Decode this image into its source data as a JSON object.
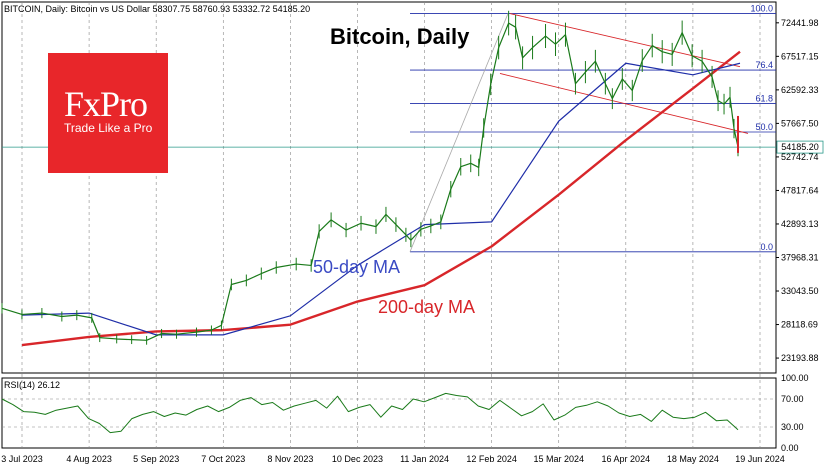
{
  "header": {
    "symbol": "BITCOIN, Daily:  Bitcoin vs US Dollar  58307.75 58760.93 53332.72 54185.20"
  },
  "title": "Bitcoin, Daily",
  "logo": {
    "brand": "FxPro",
    "tagline": "Trade Like a Pro"
  },
  "labels": {
    "ma50": "50-day MA",
    "ma200": "200-day MA"
  },
  "colors": {
    "price": "#1a7a1a",
    "ma50": "#1f2ea8",
    "ma200": "#d8262a",
    "fib": "#1f2ea8",
    "channel": "#d8262a",
    "rsi": "#1a7a1a",
    "brand": "#e8262a",
    "current": "#2a9a8a"
  },
  "chart_data": {
    "type": "line",
    "title": "Bitcoin, Daily",
    "x": [
      "3 Jul 2023",
      "4 Aug 2023",
      "5 Sep 2023",
      "7 Oct 2023",
      "8 Nov 2023",
      "10 Dec 2023",
      "11 Jan 2024",
      "12 Feb 2024",
      "15 Mar 2024",
      "16 Apr 2024",
      "18 May 2024",
      "19 Jun 2024"
    ],
    "xticks": [
      "3 Jul 2023",
      "4 Aug 2023",
      "5 Sep 2023",
      "7 Oct 2023",
      "8 Nov 2023",
      "10 Dec 2023",
      "11 Jan 2024",
      "12 Feb 2024",
      "15 Mar 2024",
      "16 Apr 2024",
      "18 May 2024",
      "19 Jun 2024"
    ],
    "yticks": [
      "72441.98",
      "67517.15",
      "62592.33",
      "57667.50",
      "52742.74",
      "47817.64",
      "42893.13",
      "37968.31",
      "33043.50",
      "28118.69",
      "23193.88"
    ],
    "yrange": [
      21000,
      75500
    ],
    "current_price": 54185.2,
    "current_price_label": "54185.20",
    "series": [
      {
        "name": "50-day MA",
        "values": [
          29500,
          29800,
          26600,
          26600,
          29400,
          36800,
          42800,
          43200,
          58000,
          66500,
          64800,
          66500
        ]
      },
      {
        "name": "200-day MA",
        "values": [
          25100,
          26300,
          27100,
          27300,
          28100,
          31500,
          33900,
          39600,
          47200,
          55200,
          62800,
          68200
        ]
      }
    ],
    "price": [
      [
        0,
        30500
      ],
      [
        20,
        29600
      ],
      [
        40,
        29800
      ],
      [
        60,
        29300
      ],
      [
        75,
        29500
      ],
      [
        90,
        29100
      ],
      [
        98,
        26200
      ],
      [
        115,
        26000
      ],
      [
        130,
        25900
      ],
      [
        145,
        25800
      ],
      [
        160,
        26800
      ],
      [
        175,
        26700
      ],
      [
        195,
        27000
      ],
      [
        210,
        27300
      ],
      [
        220,
        28000
      ],
      [
        230,
        34000
      ],
      [
        245,
        34600
      ],
      [
        260,
        35600
      ],
      [
        275,
        36500
      ],
      [
        295,
        37000
      ],
      [
        310,
        36800
      ],
      [
        318,
        41800
      ],
      [
        330,
        43500
      ],
      [
        345,
        42000
      ],
      [
        360,
        43000
      ],
      [
        375,
        42500
      ],
      [
        385,
        44300
      ],
      [
        395,
        42800
      ],
      [
        405,
        41300
      ],
      [
        410,
        40500
      ],
      [
        420,
        42100
      ],
      [
        430,
        42600
      ],
      [
        440,
        43200
      ],
      [
        450,
        48000
      ],
      [
        460,
        51300
      ],
      [
        470,
        51800
      ],
      [
        478,
        51200
      ],
      [
        483,
        57000
      ],
      [
        490,
        63400
      ],
      [
        498,
        68800
      ],
      [
        508,
        72400
      ],
      [
        515,
        71800
      ],
      [
        522,
        67300
      ],
      [
        532,
        68800
      ],
      [
        545,
        70500
      ],
      [
        555,
        69300
      ],
      [
        565,
        70700
      ],
      [
        575,
        63500
      ],
      [
        585,
        65200
      ],
      [
        595,
        66800
      ],
      [
        605,
        63500
      ],
      [
        612,
        61300
      ],
      [
        622,
        64200
      ],
      [
        632,
        62500
      ],
      [
        642,
        66900
      ],
      [
        652,
        69100
      ],
      [
        662,
        68200
      ],
      [
        672,
        67800
      ],
      [
        682,
        71000
      ],
      [
        692,
        67600
      ],
      [
        702,
        66800
      ],
      [
        712,
        64500
      ],
      [
        718,
        61000
      ],
      [
        724,
        60500
      ],
      [
        730,
        61500
      ],
      [
        734,
        56900
      ],
      [
        738,
        54200
      ]
    ],
    "fibonacci": {
      "levels": [
        {
          "label": "100.0",
          "value": 73800
        },
        {
          "label": "76.4",
          "value": 65500
        },
        {
          "label": "61.8",
          "value": 60600
        },
        {
          "label": "50.0",
          "value": 56400
        },
        {
          "label": "0.0",
          "value": 38800
        }
      ]
    },
    "rsi": {
      "label": "RSI(14) 26.12",
      "yticks": [
        "100.00",
        "70.00",
        "30.00",
        "0.00"
      ],
      "yrange": [
        0,
        100
      ],
      "values": [
        70,
        62,
        52,
        51,
        48,
        54,
        57,
        60,
        42,
        35,
        22,
        24,
        42,
        48,
        52,
        45,
        50,
        47,
        55,
        60,
        52,
        58,
        68,
        72,
        62,
        65,
        54,
        60,
        64,
        68,
        57,
        74,
        52,
        58,
        62,
        44,
        60,
        55,
        70,
        66,
        72,
        78,
        75,
        73,
        60,
        55,
        68,
        57,
        46,
        52,
        63,
        40,
        47,
        58,
        61,
        66,
        60,
        50,
        45,
        48,
        38,
        54,
        44,
        42,
        44,
        51,
        39,
        40,
        26
      ]
    }
  }
}
